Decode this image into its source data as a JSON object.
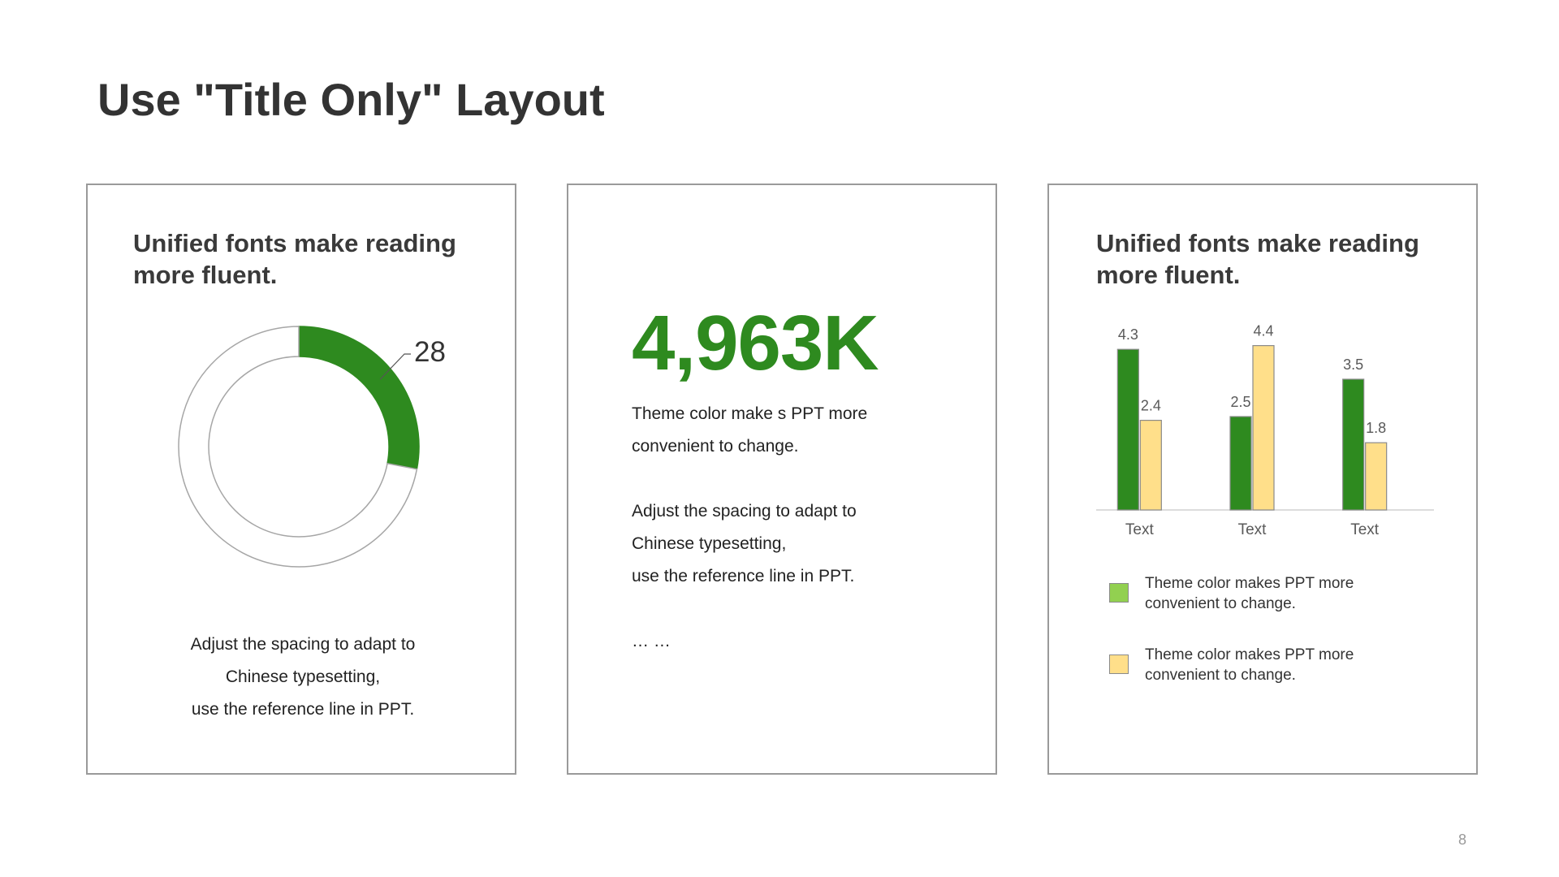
{
  "slide": {
    "title": "Use \"Title Only\" Layout",
    "page_number": "8"
  },
  "colors": {
    "accent_green": "#2e8a1f",
    "bar_green": "#2e8a1f",
    "bar_yellow": "#ffdf8a",
    "legend_green": "#92d050",
    "legend_yellow": "#ffdf8a",
    "border": "#9a9a9a"
  },
  "card1": {
    "heading_line1": "Unified fonts make reading",
    "heading_line2": "more fluent.",
    "donut_value_label": "28",
    "text_lines": [
      "Adjust the spacing to adapt to",
      "Chinese typesetting,",
      "use the reference line in PPT."
    ]
  },
  "card2": {
    "big_number": "4,963K",
    "text_lines": [
      "Theme  color make s PPT more",
      "convenient  to change.",
      "",
      "Adjust the spacing to adapt to",
      "Chinese typesetting,",
      "use the reference line in PPT.",
      "",
      "… …"
    ]
  },
  "card3": {
    "heading_line1": "Unified fonts make reading",
    "heading_line2": "more fluent.",
    "legend": [
      {
        "line1": "Theme  color makes PPT more",
        "line2": "convenient  to change."
      },
      {
        "line1": "Theme  color makes PPT more",
        "line2": "convenient  to change."
      }
    ]
  },
  "chart_data": [
    {
      "type": "pie",
      "variant": "donut",
      "values": [
        28,
        72
      ],
      "data_label": "28",
      "colors": [
        "#2e8a1f",
        "#ffffff"
      ]
    },
    {
      "type": "bar",
      "categories": [
        "Text",
        "Text",
        "Text"
      ],
      "series": [
        {
          "values": [
            4.3,
            2.5,
            3.5
          ],
          "color": "#2e8a1f"
        },
        {
          "values": [
            2.4,
            4.4,
            1.8
          ],
          "color": "#ffdf8a"
        }
      ],
      "ylim": [
        0,
        5
      ],
      "grid": false,
      "data_labels": true,
      "legend_position": "bottom"
    }
  ]
}
